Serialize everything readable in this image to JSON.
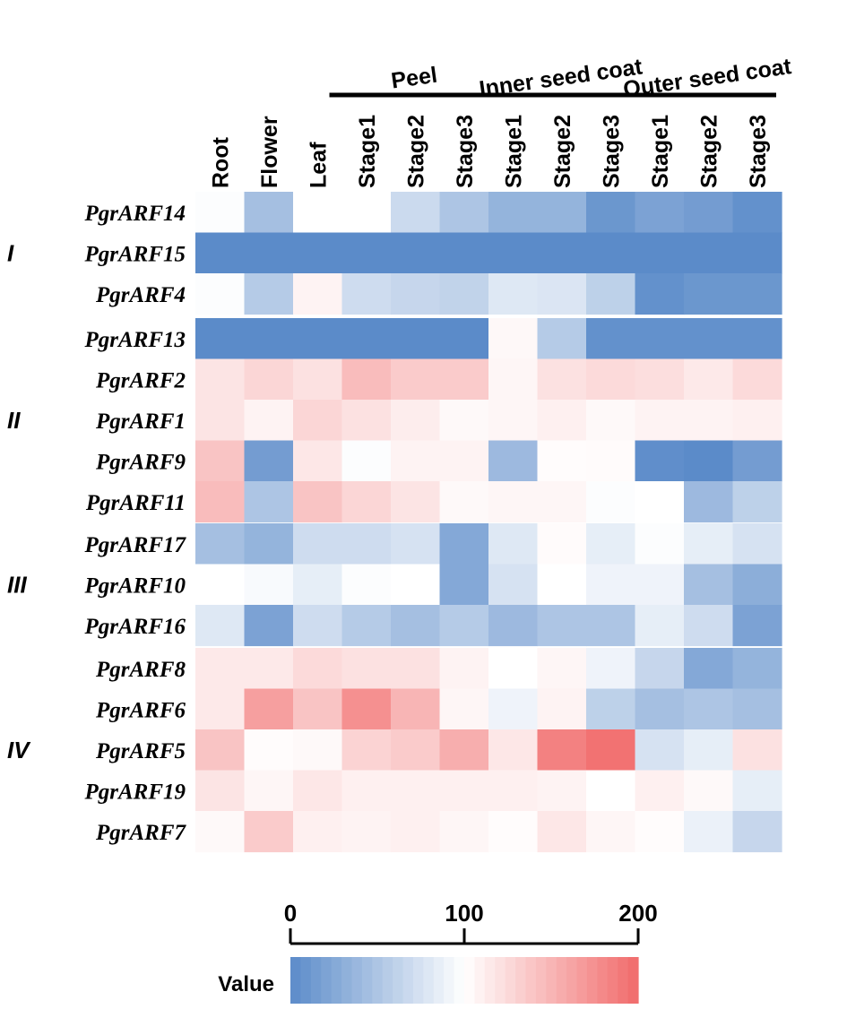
{
  "chart_data": {
    "type": "heatmap",
    "columns": [
      "Root",
      "Flower",
      "Leaf",
      "Stage1",
      "Stage2",
      "Stage3",
      "Stage1",
      "Stage2",
      "Stage3",
      "Stage1",
      "Stage2",
      "Stage3"
    ],
    "column_groups": [
      {
        "label": "Peel",
        "start": 3,
        "end": 5
      },
      {
        "label": "Inner seed coat",
        "start": 6,
        "end": 8
      },
      {
        "label": "Outer seed coat",
        "start": 9,
        "end": 11
      }
    ],
    "clusters": [
      {
        "label": "I",
        "rows": [
          "PgrARF14",
          "PgrARF15",
          "PgrARF4"
        ]
      },
      {
        "label": "II",
        "rows": [
          "PgrARF13",
          "PgrARF2",
          "PgrARF1",
          "PgrARF9",
          "PgrARF11"
        ]
      },
      {
        "label": "III",
        "rows": [
          "PgrARF17",
          "PgrARF10",
          "PgrARF16"
        ]
      },
      {
        "label": "IV",
        "rows": [
          "PgrARF8",
          "PgrARF6",
          "PgrARF5",
          "PgrARF19",
          "PgrARF7"
        ]
      }
    ],
    "values": [
      [
        98,
        45,
        100,
        100,
        68,
        50,
        35,
        35,
        10,
        20,
        15,
        5
      ],
      [
        0,
        0,
        0,
        0,
        0,
        0,
        0,
        0,
        0,
        0,
        0,
        0
      ],
      [
        98,
        55,
        108,
        70,
        65,
        62,
        80,
        78,
        60,
        5,
        10,
        10
      ],
      [
        0,
        0,
        0,
        0,
        0,
        0,
        105,
        55,
        5,
        5,
        5,
        5
      ],
      [
        118,
        128,
        120,
        145,
        135,
        135,
        106,
        120,
        125,
        122,
        115,
        125
      ],
      [
        118,
        108,
        128,
        120,
        112,
        104,
        106,
        110,
        104,
        108,
        108,
        110
      ],
      [
        140,
        15,
        116,
        98,
        108,
        108,
        40,
        102,
        103,
        3,
        0,
        15
      ],
      [
        145,
        50,
        140,
        128,
        118,
        104,
        106,
        106,
        98,
        100,
        40,
        60
      ],
      [
        45,
        35,
        70,
        70,
        75,
        25,
        80,
        103,
        85,
        98,
        85,
        75
      ],
      [
        100,
        96,
        85,
        98,
        100,
        25,
        75,
        100,
        90,
        90,
        45,
        30
      ],
      [
        80,
        20,
        70,
        55,
        45,
        55,
        40,
        50,
        50,
        85,
        70,
        20
      ],
      [
        115,
        115,
        125,
        120,
        120,
        108,
        100,
        106,
        90,
        65,
        25,
        35
      ],
      [
        115,
        165,
        140,
        175,
        150,
        106,
        90,
        108,
        60,
        45,
        50,
        45
      ],
      [
        140,
        102,
        104,
        130,
        135,
        155,
        116,
        185,
        195,
        75,
        85,
        120
      ],
      [
        118,
        106,
        116,
        110,
        110,
        110,
        110,
        108,
        100,
        110,
        104,
        85
      ],
      [
        104,
        135,
        110,
        108,
        110,
        106,
        102,
        116,
        106,
        102,
        88,
        65
      ]
    ],
    "colorbar": {
      "title": "Value",
      "min": 0,
      "max": 200,
      "ticks": [
        0,
        100,
        200
      ],
      "low_color": "#5b8bc9",
      "mid_color": "#ffffff",
      "high_color": "#f16b6b"
    }
  }
}
